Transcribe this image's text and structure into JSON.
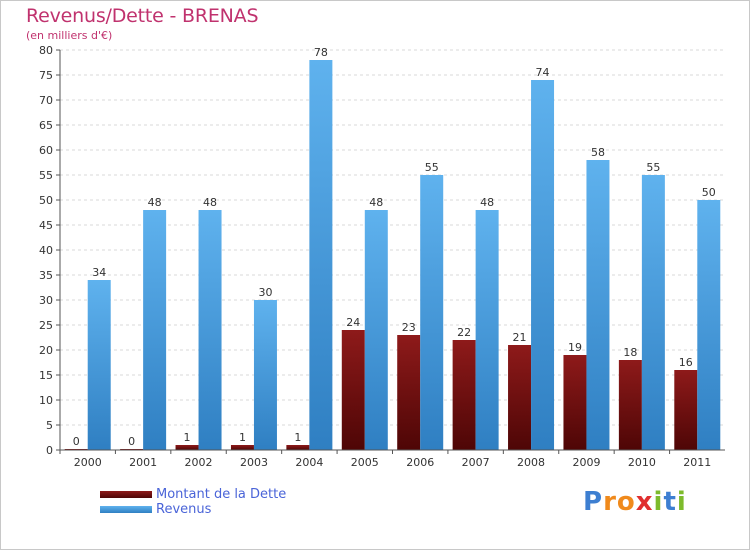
{
  "chart_data": {
    "type": "bar",
    "title": "Revenus/Dette - BRENAS",
    "subtitle": "(en milliers d'€)",
    "categories": [
      "2000",
      "2001",
      "2002",
      "2003",
      "2004",
      "2005",
      "2006",
      "2007",
      "2008",
      "2009",
      "2010",
      "2011"
    ],
    "series": [
      {
        "name": "Montant de la Dette",
        "color": "#7a0d0d",
        "values": [
          0,
          0,
          1,
          1,
          1,
          24,
          23,
          22,
          21,
          19,
          18,
          16
        ]
      },
      {
        "name": "Revenus",
        "color": "#4a9fe0",
        "values": [
          34,
          48,
          48,
          30,
          78,
          48,
          55,
          48,
          74,
          58,
          55,
          50
        ]
      }
    ],
    "ylim": [
      0,
      80
    ],
    "yticks": [
      0,
      5,
      10,
      15,
      20,
      25,
      30,
      35,
      40,
      45,
      50,
      55,
      60,
      65,
      70,
      75,
      80
    ],
    "xlabel": "",
    "ylabel": "",
    "grid": true,
    "legend_position": "bottom-left"
  },
  "logo": {
    "letters": [
      {
        "ch": "P",
        "color": "#3d7fd1"
      },
      {
        "ch": "r",
        "color": "#f08a1c"
      },
      {
        "ch": "o",
        "color": "#f08a1c"
      },
      {
        "ch": "x",
        "color": "#e02f2f"
      },
      {
        "ch": "i",
        "color": "#7dbb2c"
      },
      {
        "ch": "t",
        "color": "#3d7fd1"
      },
      {
        "ch": "i",
        "color": "#7dbb2c"
      }
    ]
  }
}
